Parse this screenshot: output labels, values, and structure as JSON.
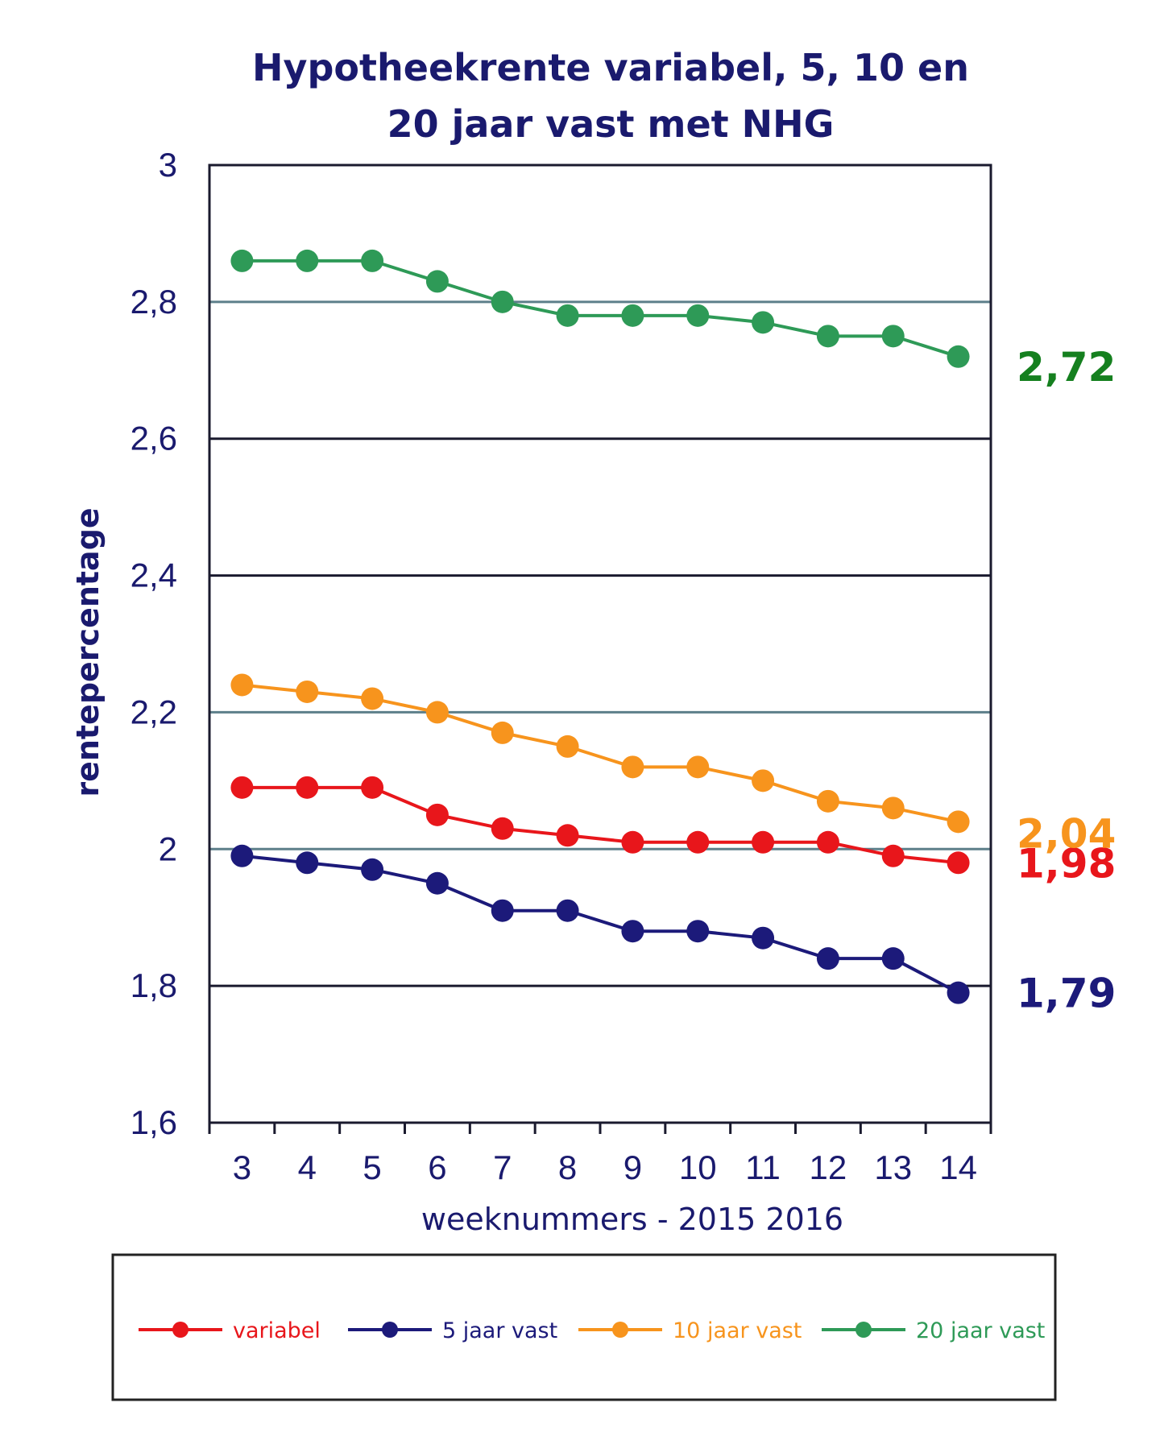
{
  "chart_data": {
    "type": "line",
    "title_lines": [
      "Hypotheekrente variabel, 5, 10 en",
      "20 jaar vast met NHG"
    ],
    "xlabel": "weeknummers - 2015 2016",
    "ylabel": "rentepercentage",
    "categories": [
      "3",
      "4",
      "5",
      "6",
      "7",
      "8",
      "9",
      "10",
      "11",
      "12",
      "13",
      "14"
    ],
    "y_ticks": [
      "1,6",
      "1,8",
      "2",
      "2,2",
      "2,4",
      "2,6",
      "2,8",
      "3"
    ],
    "y_tick_values": [
      1.6,
      1.8,
      2.0,
      2.2,
      2.4,
      2.6,
      2.8,
      3.0
    ],
    "ylim": [
      1.6,
      3.0
    ],
    "grid": true,
    "legend_position": "bottom",
    "series": [
      {
        "name": "variabel",
        "color": "#e8161b",
        "end_label": "1,98",
        "values": [
          2.09,
          2.09,
          2.09,
          2.05,
          2.03,
          2.02,
          2.01,
          2.01,
          2.01,
          2.01,
          1.99,
          1.98
        ]
      },
      {
        "name": "5 jaar vast",
        "color": "#1c1a7a",
        "end_label": "1,79",
        "values": [
          1.99,
          1.98,
          1.97,
          1.95,
          1.91,
          1.91,
          1.88,
          1.88,
          1.87,
          1.84,
          1.84,
          1.79
        ]
      },
      {
        "name": "10 jaar vast",
        "color": "#f7941d",
        "end_label": "2,04",
        "values": [
          2.24,
          2.23,
          2.22,
          2.2,
          2.17,
          2.15,
          2.12,
          2.12,
          2.1,
          2.07,
          2.06,
          2.04
        ]
      },
      {
        "name": "20 jaar vast",
        "color": "#2e9a57",
        "end_label": "2,72",
        "values": [
          2.86,
          2.86,
          2.86,
          2.83,
          2.8,
          2.78,
          2.78,
          2.78,
          2.77,
          2.75,
          2.75,
          2.72
        ]
      }
    ],
    "end_label_colors": {
      "variabel": "#e8161b",
      "5 jaar vast": "#1c1a7a",
      "10 jaar vast": "#f7941d",
      "20 jaar vast": "#15801f"
    },
    "text_color": "#1a1a6e",
    "grid_colors": {
      "default": "#1a1a2e",
      "y2.8": "#5d7f8a",
      "y2.2": "#5d7f8a",
      "y2": "#5d7f8a"
    }
  }
}
